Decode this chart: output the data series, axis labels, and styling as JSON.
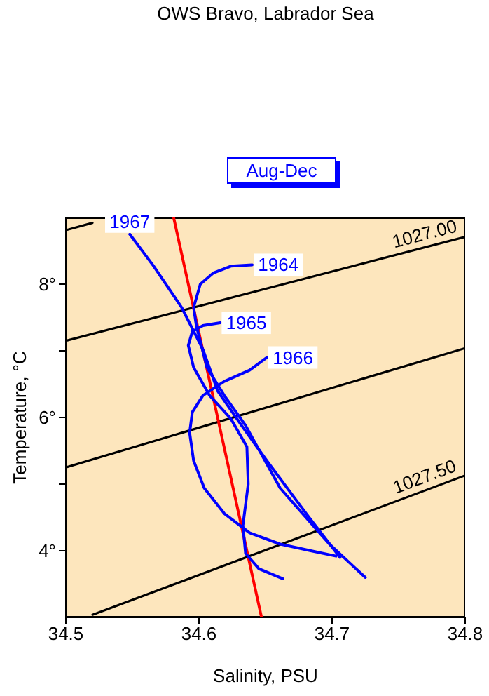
{
  "chart_data": {
    "type": "line",
    "title": "OWS Bravo,  Labrador Sea",
    "subtitle": "Aug-Dec",
    "xlabel": "Salinity, PSU",
    "ylabel": "Temperature, °C",
    "xlim": [
      34.5,
      34.8
    ],
    "ylim": [
      3,
      9
    ],
    "xticks": [
      34.5,
      34.6,
      34.7,
      34.8
    ],
    "yticks": [
      {
        "value": 4,
        "label": "4°"
      },
      {
        "value": 5,
        "label": null
      },
      {
        "value": 6,
        "label": "6°"
      },
      {
        "value": 7,
        "label": null
      },
      {
        "value": 8,
        "label": "8°"
      }
    ],
    "series": [
      {
        "color": "#000000",
        "x": [
          34.5,
          34.52
        ],
        "values": [
          8.81,
          8.92
        ]
      },
      {
        "name": "1027.00",
        "color": "#000000",
        "x": [
          34.5,
          34.8
        ],
        "values": [
          7.15,
          8.71
        ]
      },
      {
        "color": "#000000",
        "x": [
          34.5,
          34.8
        ],
        "values": [
          5.25,
          7.04
        ]
      },
      {
        "name": "1027.50",
        "color": "#000000",
        "x": [
          34.52,
          34.8
        ],
        "values": [
          3.04,
          5.13
        ]
      },
      {
        "color": "#ff0000",
        "x": [
          34.581,
          34.647
        ],
        "values": [
          9,
          3
        ]
      },
      {
        "name": "1967",
        "color": "#0000ff",
        "x": [
          34.548,
          34.566,
          34.587,
          34.603,
          34.614,
          34.632,
          34.651,
          34.682,
          34.706
        ],
        "values": [
          8.75,
          8.27,
          7.65,
          7.02,
          6.4,
          5.88,
          5.35,
          4.52,
          3.9
        ]
      },
      {
        "name": "1964",
        "color": "#0000ff",
        "x": [
          34.64,
          34.624,
          34.611,
          34.601,
          34.596,
          34.598,
          34.606,
          34.619,
          34.635,
          34.661,
          34.698,
          34.725
        ],
        "values": [
          8.29,
          8.27,
          8.17,
          8.0,
          7.65,
          7.38,
          6.75,
          6.33,
          5.88,
          4.94,
          4.1,
          3.6
        ]
      },
      {
        "name": "1965",
        "color": "#0000ff",
        "x": [
          34.616,
          34.603,
          34.595,
          34.592,
          34.596,
          34.608,
          34.624,
          34.636,
          34.637,
          34.633,
          34.635,
          34.645,
          34.663
        ],
        "values": [
          7.42,
          7.38,
          7.29,
          7.08,
          6.75,
          6.33,
          5.98,
          5.56,
          5.0,
          4.38,
          3.96,
          3.73,
          3.58
        ]
      },
      {
        "name": "1966",
        "color": "#0000ff",
        "x": [
          34.651,
          34.638,
          34.619,
          34.603,
          34.595,
          34.593,
          34.596,
          34.604,
          34.619,
          34.638,
          34.661,
          34.684,
          34.703
        ],
        "values": [
          6.9,
          6.71,
          6.54,
          6.33,
          6.08,
          5.77,
          5.35,
          4.94,
          4.56,
          4.27,
          4.1,
          4.0,
          3.92
        ]
      }
    ]
  }
}
